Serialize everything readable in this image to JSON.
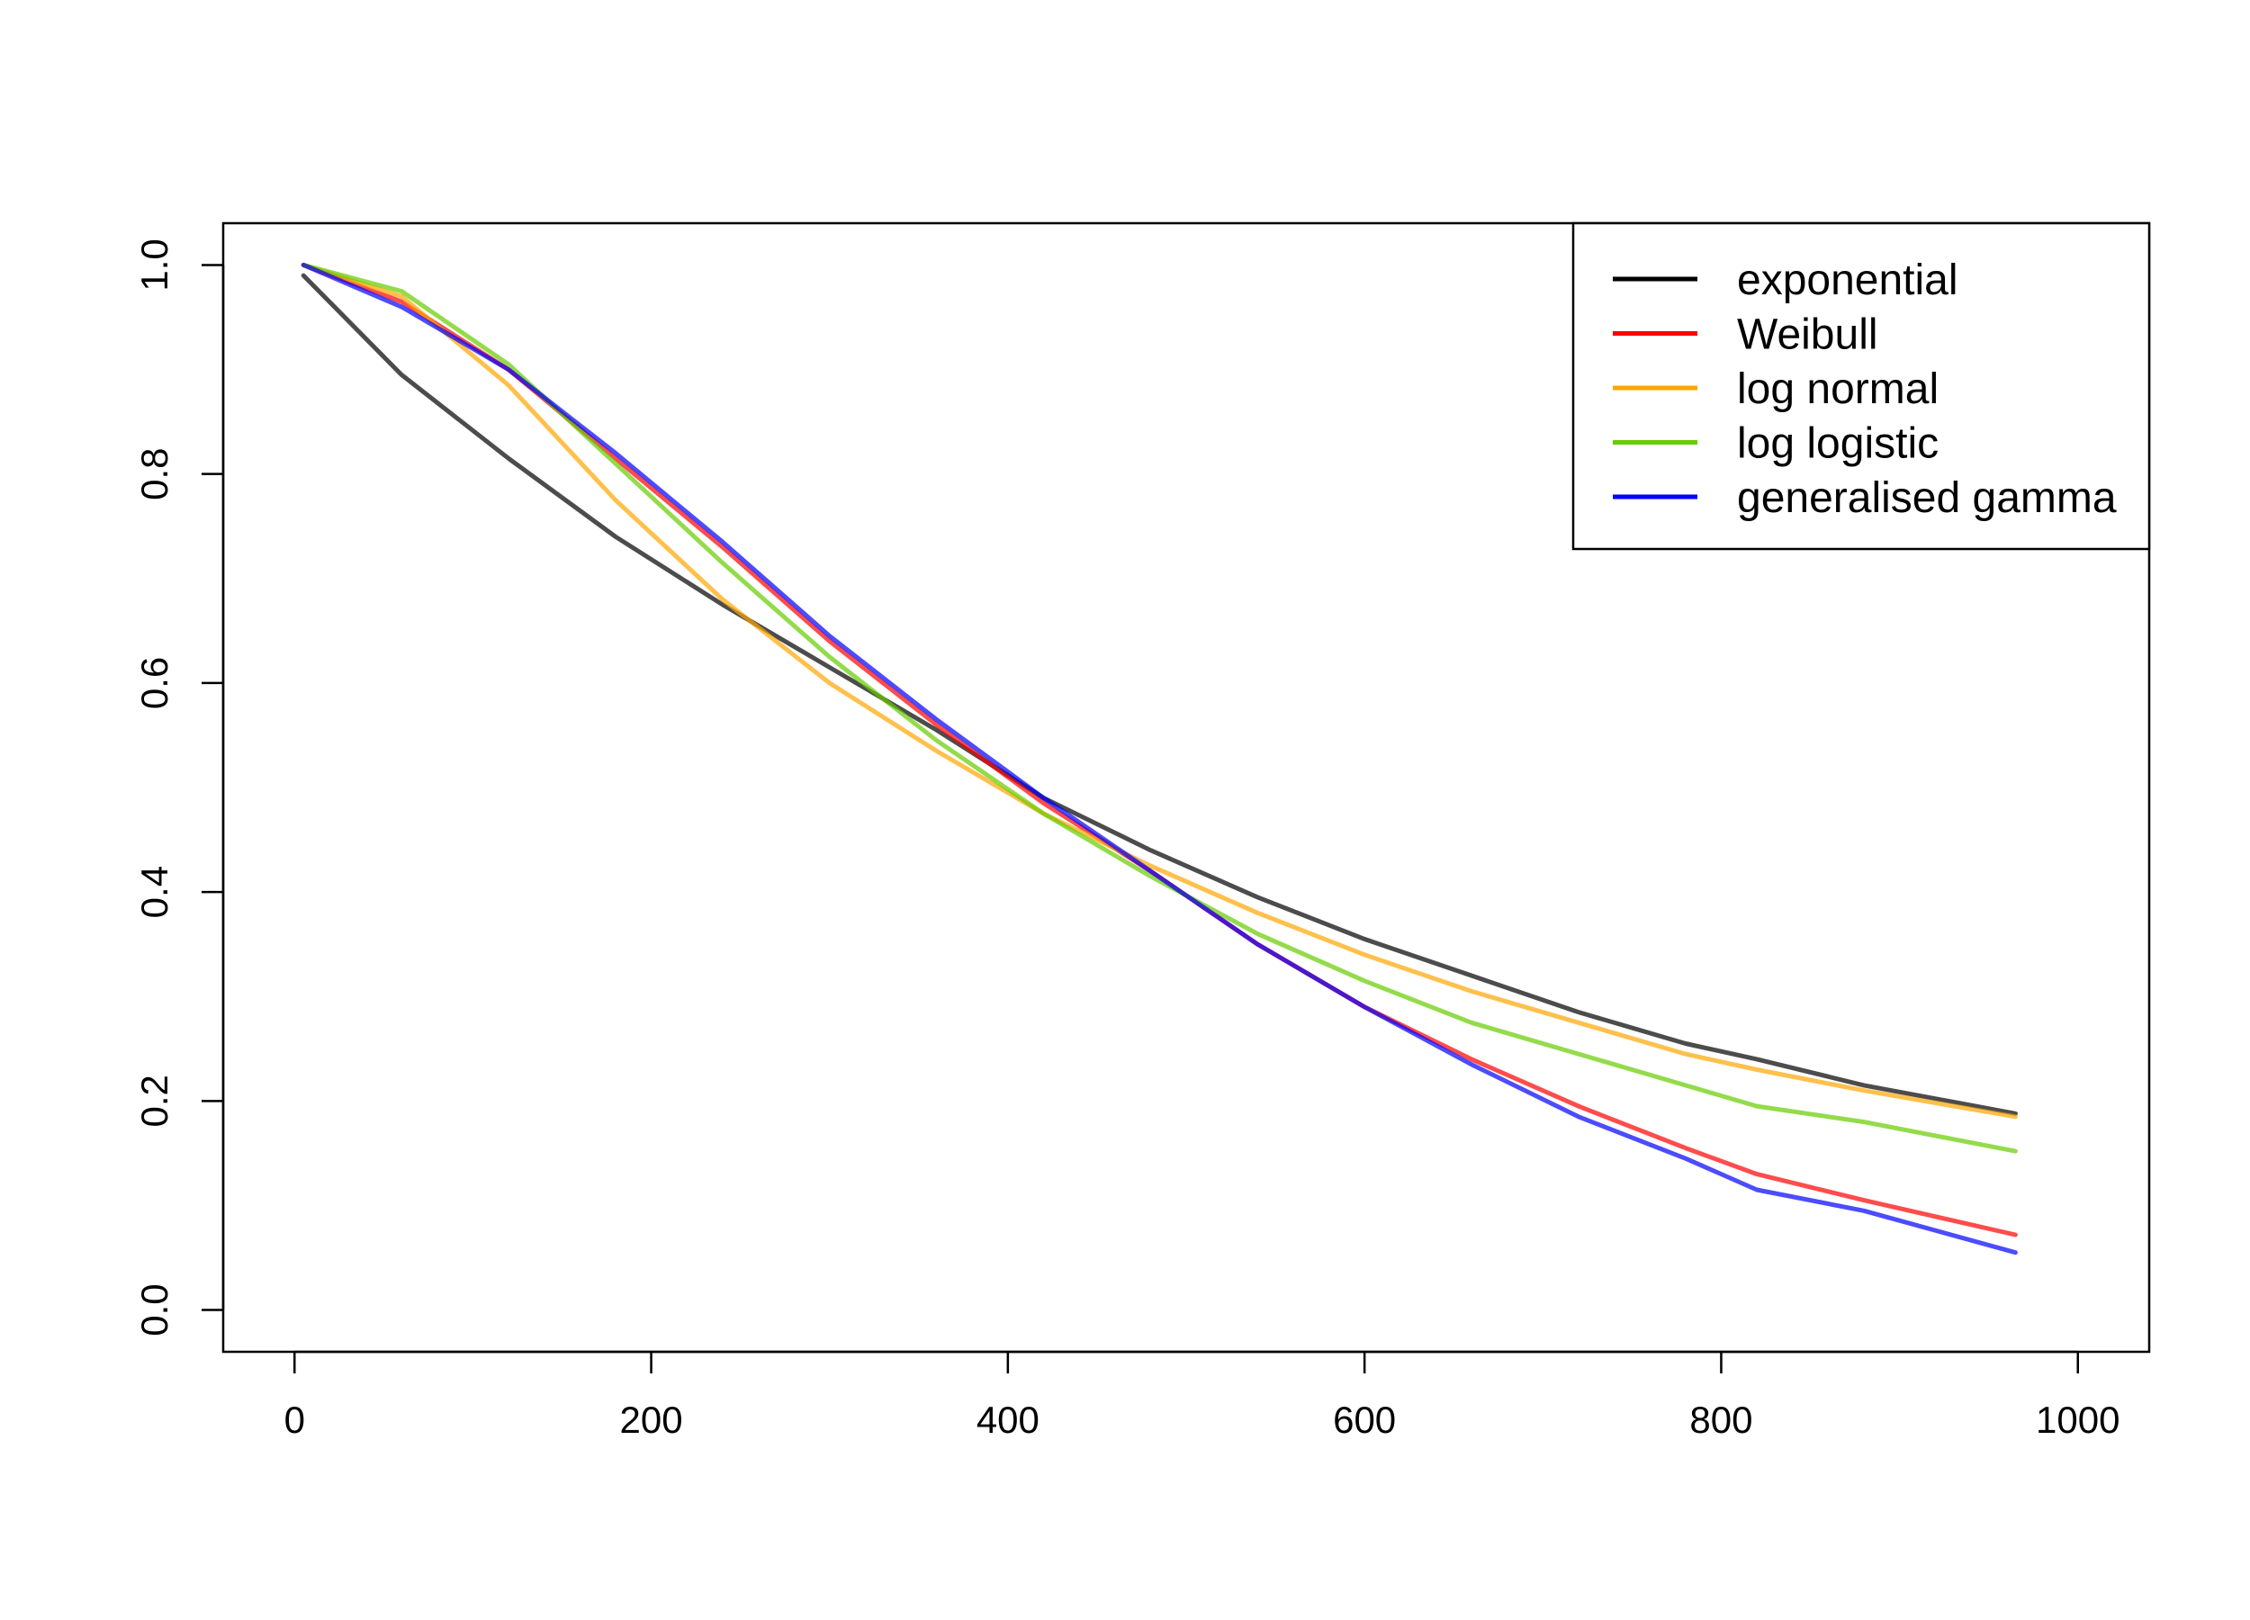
{
  "chart_data": {
    "type": "line",
    "title": "",
    "xlabel": "",
    "ylabel": "",
    "xlim": [
      -40,
      1040
    ],
    "ylim": [
      -0.04,
      1.04
    ],
    "x_ticks": [
      0,
      200,
      400,
      600,
      800,
      1000
    ],
    "y_ticks": [
      0.0,
      0.2,
      0.4,
      0.6,
      0.8,
      1.0
    ],
    "x_tick_labels": [
      "0",
      "200",
      "400",
      "600",
      "800",
      "1000"
    ],
    "y_tick_labels": [
      "0.0",
      "0.2",
      "0.4",
      "0.6",
      "0.8",
      "1.0"
    ],
    "grid": false,
    "legend_position": "top-right",
    "series": [
      {
        "name": "exponential",
        "color": "#000000",
        "x": [
          5,
          60,
          120,
          180,
          240,
          300,
          360,
          420,
          480,
          540,
          600,
          660,
          720,
          780,
          820,
          880,
          965
        ],
        "y": [
          0.99,
          0.895,
          0.815,
          0.74,
          0.675,
          0.615,
          0.555,
          0.49,
          0.44,
          0.395,
          0.355,
          0.32,
          0.285,
          0.255,
          0.24,
          0.215,
          0.188
        ]
      },
      {
        "name": "Weibull",
        "color": "#ff0000",
        "x": [
          5,
          60,
          120,
          180,
          240,
          300,
          360,
          420,
          480,
          540,
          600,
          660,
          720,
          780,
          820,
          880,
          965
        ],
        "y": [
          1.0,
          0.965,
          0.9,
          0.815,
          0.73,
          0.64,
          0.56,
          0.485,
          0.42,
          0.35,
          0.29,
          0.24,
          0.195,
          0.155,
          0.13,
          0.105,
          0.072
        ]
      },
      {
        "name": "log normal",
        "color": "#ffa500",
        "x": [
          5,
          60,
          120,
          180,
          240,
          300,
          360,
          420,
          480,
          540,
          600,
          660,
          720,
          780,
          820,
          880,
          965
        ],
        "y": [
          1.0,
          0.97,
          0.885,
          0.775,
          0.68,
          0.6,
          0.535,
          0.475,
          0.425,
          0.38,
          0.34,
          0.305,
          0.275,
          0.245,
          0.23,
          0.21,
          0.185
        ]
      },
      {
        "name": "log logistic",
        "color": "#66cc00",
        "x": [
          5,
          60,
          120,
          180,
          240,
          300,
          360,
          420,
          480,
          540,
          600,
          660,
          720,
          780,
          820,
          880,
          965
        ],
        "y": [
          1.0,
          0.975,
          0.905,
          0.81,
          0.715,
          0.625,
          0.545,
          0.475,
          0.415,
          0.36,
          0.315,
          0.275,
          0.245,
          0.215,
          0.195,
          0.18,
          0.152
        ]
      },
      {
        "name": "generalised gamma",
        "color": "#0000ff",
        "x": [
          5,
          60,
          120,
          180,
          240,
          300,
          360,
          420,
          480,
          540,
          600,
          660,
          720,
          780,
          820,
          880,
          965
        ],
        "y": [
          1.0,
          0.96,
          0.9,
          0.82,
          0.735,
          0.645,
          0.565,
          0.49,
          0.42,
          0.35,
          0.29,
          0.235,
          0.185,
          0.145,
          0.115,
          0.095,
          0.055
        ]
      }
    ]
  }
}
